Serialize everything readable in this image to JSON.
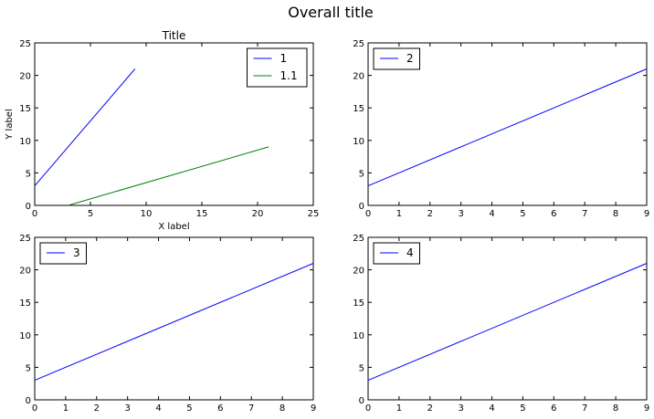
{
  "figure": {
    "title": "Overall title"
  },
  "chart_data": [
    {
      "type": "line",
      "title": "Title",
      "xlabel": "X label",
      "ylabel": "Y label",
      "xlim": [
        0,
        25
      ],
      "ylim": [
        0,
        25
      ],
      "xticks": [
        "0",
        "5",
        "10",
        "15",
        "20",
        "25"
      ],
      "yticks": [
        "0",
        "5",
        "10",
        "15",
        "20",
        "25"
      ],
      "legend": "upper right",
      "series": [
        {
          "name": "1",
          "color": "#0000ff",
          "x": [
            0,
            9
          ],
          "y": [
            3,
            21
          ]
        },
        {
          "name": "1.1",
          "color": "#008000",
          "x": [
            3,
            21
          ],
          "y": [
            0,
            9
          ]
        }
      ]
    },
    {
      "type": "line",
      "title": "",
      "xlabel": "",
      "ylabel": "",
      "xlim": [
        0,
        9
      ],
      "ylim": [
        0,
        25
      ],
      "xticks": [
        "0",
        "1",
        "2",
        "3",
        "4",
        "5",
        "6",
        "7",
        "8",
        "9"
      ],
      "yticks": [
        "0",
        "5",
        "10",
        "15",
        "20",
        "25"
      ],
      "legend": "upper left",
      "series": [
        {
          "name": "2",
          "color": "#0000ff",
          "x": [
            0,
            9
          ],
          "y": [
            3,
            21
          ]
        }
      ]
    },
    {
      "type": "line",
      "title": "",
      "xlabel": "",
      "ylabel": "",
      "xlim": [
        0,
        9
      ],
      "ylim": [
        0,
        25
      ],
      "xticks": [
        "0",
        "1",
        "2",
        "3",
        "4",
        "5",
        "6",
        "7",
        "8",
        "9"
      ],
      "yticks": [
        "0",
        "5",
        "10",
        "15",
        "20",
        "25"
      ],
      "legend": "upper left",
      "series": [
        {
          "name": "3",
          "color": "#0000ff",
          "x": [
            0,
            9
          ],
          "y": [
            3,
            21
          ]
        }
      ]
    },
    {
      "type": "line",
      "title": "",
      "xlabel": "",
      "ylabel": "",
      "xlim": [
        0,
        9
      ],
      "ylim": [
        0,
        25
      ],
      "xticks": [
        "0",
        "1",
        "2",
        "3",
        "4",
        "5",
        "6",
        "7",
        "8",
        "9"
      ],
      "yticks": [
        "0",
        "5",
        "10",
        "15",
        "20",
        "25"
      ],
      "legend": "upper left",
      "series": [
        {
          "name": "4",
          "color": "#0000ff",
          "x": [
            0,
            9
          ],
          "y": [
            3,
            21
          ]
        }
      ]
    }
  ]
}
